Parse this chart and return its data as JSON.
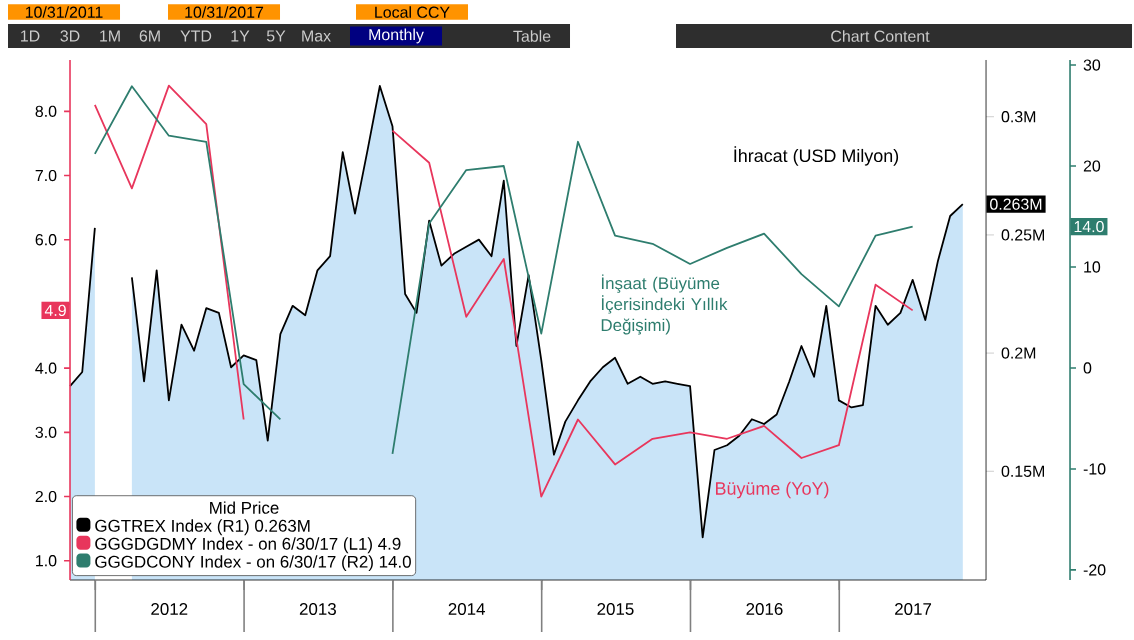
{
  "chart_data": {
    "type": "line",
    "legend_title": "Mid Price",
    "annotations": [
      "10/31/2011",
      "10/31/2017",
      "Local CCY",
      "1D",
      "3D",
      "1M",
      "6M",
      "YTD",
      "1Y",
      "5Y",
      "Max",
      "Monthly",
      "Table",
      "Chart Content",
      "İhracat (USD Milyon)",
      "İnşaat (Büyüme İçerisindeki Yıllık Değişimi)",
      "Büyüme (YoY)",
      "4.9",
      "0.263M",
      "14.0"
    ],
    "xlim": [
      "2011-10-31",
      "2017-12-27"
    ],
    "xticks": [
      {
        "value": "2012-01-01",
        "label": null
      },
      {
        "value": "2012-07-01",
        "label": "2012"
      },
      {
        "value": "2013-01-01",
        "label": null
      },
      {
        "value": "2013-07-01",
        "label": "2013"
      },
      {
        "value": "2014-01-01",
        "label": null
      },
      {
        "value": "2014-07-01",
        "label": "2014"
      },
      {
        "value": "2015-01-01",
        "label": null
      },
      {
        "value": "2015-07-01",
        "label": "2015"
      },
      {
        "value": "2016-01-01",
        "label": null
      },
      {
        "value": "2016-07-01",
        "label": "2016"
      },
      {
        "value": "2017-01-01",
        "label": null
      },
      {
        "value": "2017-07-01",
        "label": "2017"
      }
    ],
    "ylim": [
      0.7,
      8.8
    ],
    "yticks": [
      {
        "value": 1,
        "label": "1.0"
      },
      {
        "value": 2,
        "label": "2.0"
      },
      {
        "value": 3,
        "label": "3.0"
      },
      {
        "value": 4,
        "label": "4.0"
      },
      {
        "value": 5,
        "label": null
      },
      {
        "value": 6,
        "label": "6.0"
      },
      {
        "value": 7,
        "label": "7.0"
      },
      {
        "value": 8,
        "label": "8.0"
      }
    ],
    "y2lim": [
      0.104,
      0.324
    ],
    "y2ticks": [
      {
        "value": 0.15,
        "label": "0.15M"
      },
      {
        "value": 0.2,
        "label": "0.2M"
      },
      {
        "value": 0.25,
        "label": "0.25M"
      },
      {
        "value": 0.3,
        "label": "0.3M"
      }
    ],
    "y3lim": [
      -21,
      30.5
    ],
    "y3ticks": [
      -20,
      -10,
      0,
      10,
      20,
      30
    ],
    "legend": "bottom left",
    "marker": "none",
    "line_style": "solid",
    "series": [
      {
        "name": "GGTREX Index (R1) 0.263M",
        "type": "area",
        "axis": "y2",
        "color": "#000000",
        "x": [
          "2011-10-31",
          "2011-11-30",
          "2011-12-31",
          "2012-01-31",
          "2012-02-29",
          "2012-03-31",
          "2012-04-30",
          "2012-05-31",
          "2012-06-30",
          "2012-07-31",
          "2012-08-31",
          "2012-09-30",
          "2012-10-31",
          "2012-11-30",
          "2012-12-31",
          "2013-01-31",
          "2013-02-28",
          "2013-03-31",
          "2013-04-30",
          "2013-05-31",
          "2013-06-30",
          "2013-07-31",
          "2013-08-31",
          "2013-09-30",
          "2013-10-31",
          "2013-11-30",
          "2013-12-31",
          "2014-01-31",
          "2014-02-28",
          "2014-03-31",
          "2014-04-30",
          "2014-05-31",
          "2014-06-30",
          "2014-07-31",
          "2014-08-31",
          "2014-09-30",
          "2014-10-31",
          "2014-11-30",
          "2014-12-31",
          "2015-01-31",
          "2015-02-28",
          "2015-03-31",
          "2015-04-30",
          "2015-05-31",
          "2015-06-30",
          "2015-07-31",
          "2015-08-31",
          "2015-09-30",
          "2015-10-31",
          "2015-11-30",
          "2015-12-31",
          "2016-01-31",
          "2016-02-29",
          "2016-03-31",
          "2016-04-30",
          "2016-05-31",
          "2016-06-30",
          "2016-07-31",
          "2016-08-31",
          "2016-09-30",
          "2016-10-31",
          "2016-11-30",
          "2016-12-31",
          "2017-01-31",
          "2017-02-28",
          "2017-03-31",
          "2017-04-30",
          "2017-05-31",
          "2017-06-30",
          "2017-07-31",
          "2017-08-31",
          "2017-09-30",
          "2017-10-31"
        ],
        "values": [
          0.186,
          0.192,
          0.253,
          null,
          null,
          0.232,
          0.188,
          0.235,
          0.18,
          0.212,
          0.201,
          0.219,
          0.217,
          0.194,
          0.199,
          0.197,
          0.163,
          0.208,
          0.22,
          0.216,
          0.235,
          0.241,
          0.285,
          0.259,
          0.286,
          0.313,
          0.296,
          0.225,
          0.217,
          0.256,
          0.237,
          0.242,
          0.245,
          0.248,
          0.241,
          0.273,
          0.203,
          0.233,
          0.197,
          0.157,
          0.171,
          0.18,
          0.188,
          0.194,
          0.198,
          0.187,
          0.19,
          0.187,
          0.188,
          0.187,
          0.186,
          0.122,
          0.159,
          0.161,
          0.165,
          0.172,
          0.17,
          0.174,
          0.188,
          0.203,
          0.19,
          0.22,
          0.18,
          0.177,
          0.178,
          0.22,
          0.212,
          0.217,
          0.231,
          0.214,
          0.239,
          0.258,
          0.263
        ]
      },
      {
        "name": "GGGDGDMY Index - on 6/30/17 (L1) 4.9",
        "type": "line",
        "axis": "y",
        "color": "#e8365c",
        "x": [
          "2011-12-31",
          "2012-03-31",
          "2012-06-30",
          "2012-09-30",
          "2012-12-31",
          "2013-03-31",
          "2013-06-30",
          "2013-09-30",
          "2013-12-31",
          "2014-03-31",
          "2014-06-30",
          "2014-09-30",
          "2014-12-31",
          "2015-03-31",
          "2015-06-30",
          "2015-09-30",
          "2015-12-31",
          "2016-03-31",
          "2016-06-30",
          "2016-09-30",
          "2016-12-31",
          "2017-03-31",
          "2017-06-30"
        ],
        "values": [
          8.1,
          6.8,
          8.4,
          7.8,
          3.2,
          null,
          null,
          null,
          7.7,
          7.2,
          4.8,
          5.7,
          2.0,
          3.2,
          2.5,
          2.9,
          3.0,
          2.9,
          3.1,
          2.6,
          2.8,
          5.3,
          4.9
        ]
      },
      {
        "name": "GGGDCONY Index - on 6/30/17 (R2) 14.0",
        "type": "line",
        "axis": "y3",
        "color": "#2e7d6e",
        "x": [
          "2011-12-31",
          "2012-03-31",
          "2012-06-30",
          "2012-09-30",
          "2012-12-31",
          "2013-03-31",
          "2013-06-30",
          "2013-09-30",
          "2013-12-31",
          "2014-03-31",
          "2014-06-30",
          "2014-09-30",
          "2014-12-31",
          "2015-03-31",
          "2015-06-30",
          "2015-09-30",
          "2015-12-31",
          "2016-03-31",
          "2016-06-30",
          "2016-09-30",
          "2016-12-31",
          "2017-03-31",
          "2017-06-30"
        ],
        "values": [
          21.2,
          27.9,
          23.0,
          22.4,
          -1.6,
          -5.1,
          null,
          null,
          -8.5,
          14.3,
          19.6,
          20.0,
          3.4,
          22.4,
          13.1,
          12.3,
          10.3,
          11.9,
          13.3,
          9.3,
          6.1,
          13.1,
          14.0
        ]
      }
    ]
  }
}
